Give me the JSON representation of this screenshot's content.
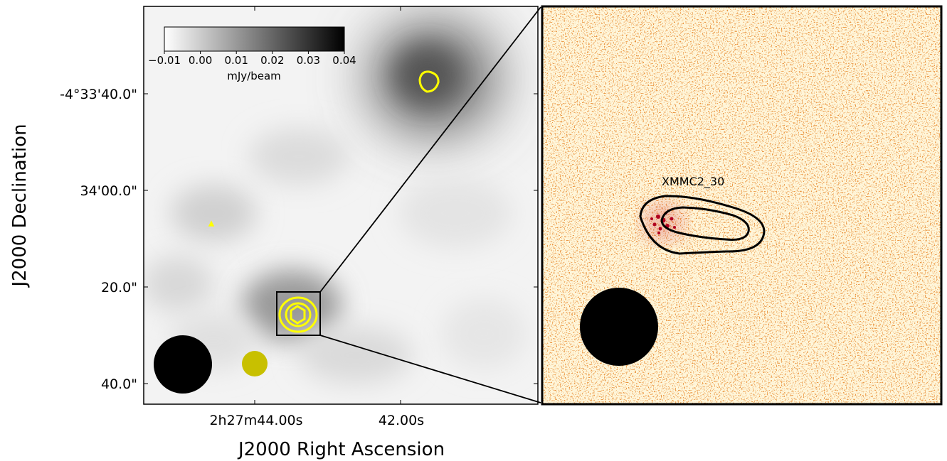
{
  "figure": {
    "colorbar": {
      "ticks": [
        "−0.01",
        "0.00",
        "0.01",
        "0.02",
        "0.03",
        "0.04"
      ],
      "unit_label": "mJy/beam"
    },
    "axes": {
      "xlabel": "J2000 Right Ascension",
      "ylabel": "J2000 Declination",
      "xticks": [
        "2h27m44.00s",
        "42.00s"
      ],
      "yticks": [
        "-4°33'40.0\"",
        "34'00.0\"",
        "20.0\"",
        "40.0\""
      ]
    },
    "inset": {
      "source_label": "XMMC2_30"
    },
    "colors": {
      "contour_left": "#ffff00",
      "contour_right": "#000000",
      "beam_small": "#c8c000",
      "beam_large": "#000000",
      "inset_map_bg": "#fff8e0",
      "inset_speckle": "#e07020"
    }
  }
}
